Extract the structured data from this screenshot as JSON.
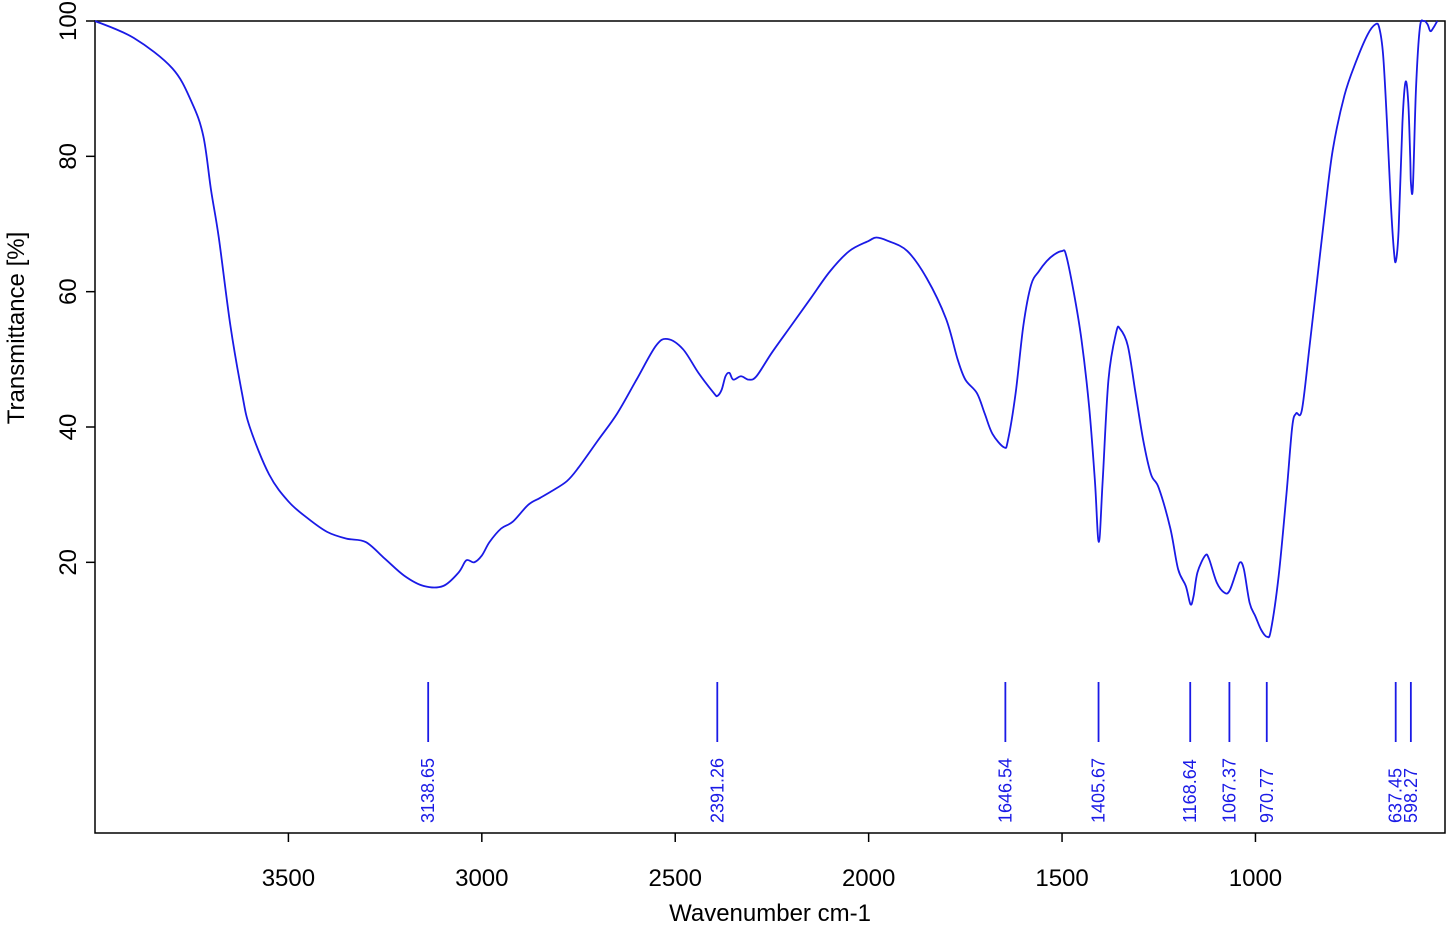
{
  "chart_data": {
    "type": "line",
    "title": "",
    "xlabel": "Wavenumber cm-1",
    "ylabel": "Transmittance [%]",
    "xlim": [
      4000,
      510
    ],
    "ylim": [
      -20,
      100
    ],
    "x_reversed": true,
    "grid": false,
    "x_ticks": [
      3500,
      3000,
      2500,
      2000,
      1500,
      1000
    ],
    "y_ticks": [
      20,
      40,
      60,
      80,
      100
    ],
    "line_color": "#1a1ae6",
    "series": [
      {
        "points": [
          [
            4000,
            100
          ],
          [
            3900,
            97.5
          ],
          [
            3800,
            93
          ],
          [
            3750,
            88
          ],
          [
            3720,
            83
          ],
          [
            3700,
            75
          ],
          [
            3680,
            68
          ],
          [
            3650,
            55
          ],
          [
            3620,
            45
          ],
          [
            3600,
            40
          ],
          [
            3550,
            33
          ],
          [
            3500,
            29
          ],
          [
            3450,
            26.5
          ],
          [
            3400,
            24.5
          ],
          [
            3350,
            23.5
          ],
          [
            3300,
            23
          ],
          [
            3250,
            20.5
          ],
          [
            3200,
            18
          ],
          [
            3150,
            16.5
          ],
          [
            3100,
            16.5
          ],
          [
            3060,
            18.5
          ],
          [
            3040,
            20.3
          ],
          [
            3020,
            20
          ],
          [
            3000,
            21
          ],
          [
            2980,
            23
          ],
          [
            2950,
            25
          ],
          [
            2920,
            26
          ],
          [
            2880,
            28.5
          ],
          [
            2850,
            29.5
          ],
          [
            2820,
            30.5
          ],
          [
            2780,
            32
          ],
          [
            2750,
            34
          ],
          [
            2700,
            38
          ],
          [
            2650,
            42
          ],
          [
            2600,
            47
          ],
          [
            2550,
            52
          ],
          [
            2520,
            53
          ],
          [
            2480,
            51.5
          ],
          [
            2440,
            48
          ],
          [
            2400,
            45
          ],
          [
            2391,
            44.6
          ],
          [
            2380,
            45.5
          ],
          [
            2370,
            47.5
          ],
          [
            2360,
            48
          ],
          [
            2350,
            47
          ],
          [
            2330,
            47.5
          ],
          [
            2310,
            47
          ],
          [
            2290,
            47.5
          ],
          [
            2250,
            51
          ],
          [
            2200,
            55
          ],
          [
            2150,
            59
          ],
          [
            2100,
            63
          ],
          [
            2050,
            66
          ],
          [
            2000,
            67.5
          ],
          [
            1980,
            68
          ],
          [
            1950,
            67.5
          ],
          [
            1900,
            66
          ],
          [
            1850,
            62
          ],
          [
            1800,
            56
          ],
          [
            1770,
            50
          ],
          [
            1750,
            47
          ],
          [
            1720,
            45
          ],
          [
            1700,
            42
          ],
          [
            1680,
            39
          ],
          [
            1650,
            37
          ],
          [
            1640,
            38
          ],
          [
            1620,
            45
          ],
          [
            1600,
            55
          ],
          [
            1580,
            61
          ],
          [
            1560,
            63
          ],
          [
            1540,
            64.5
          ],
          [
            1520,
            65.5
          ],
          [
            1500,
            66
          ],
          [
            1490,
            65.5
          ],
          [
            1470,
            60
          ],
          [
            1450,
            53
          ],
          [
            1430,
            43
          ],
          [
            1415,
            32
          ],
          [
            1405,
            23
          ],
          [
            1395,
            32
          ],
          [
            1380,
            47
          ],
          [
            1360,
            54
          ],
          [
            1350,
            54.5
          ],
          [
            1330,
            52
          ],
          [
            1310,
            45
          ],
          [
            1290,
            38
          ],
          [
            1270,
            33
          ],
          [
            1250,
            31
          ],
          [
            1220,
            25
          ],
          [
            1200,
            19
          ],
          [
            1180,
            16.5
          ],
          [
            1168,
            13.8
          ],
          [
            1160,
            15
          ],
          [
            1150,
            18.5
          ],
          [
            1130,
            21
          ],
          [
            1120,
            20.5
          ],
          [
            1100,
            17
          ],
          [
            1080,
            15.5
          ],
          [
            1067,
            15.8
          ],
          [
            1050,
            18.5
          ],
          [
            1040,
            20
          ],
          [
            1030,
            19
          ],
          [
            1015,
            14
          ],
          [
            1000,
            12
          ],
          [
            985,
            10
          ],
          [
            970,
            9
          ],
          [
            960,
            10
          ],
          [
            940,
            18
          ],
          [
            920,
            30
          ],
          [
            905,
            40
          ],
          [
            895,
            42
          ],
          [
            880,
            42.5
          ],
          [
            860,
            52
          ],
          [
            840,
            62
          ],
          [
            820,
            72
          ],
          [
            800,
            81
          ],
          [
            770,
            89
          ],
          [
            740,
            94
          ],
          [
            710,
            98
          ],
          [
            690,
            99.5
          ],
          [
            680,
            99
          ],
          [
            670,
            95
          ],
          [
            660,
            85
          ],
          [
            650,
            73
          ],
          [
            642,
            66
          ],
          [
            637,
            64.5
          ],
          [
            630,
            69
          ],
          [
            620,
            85
          ],
          [
            612,
            91
          ],
          [
            605,
            88
          ],
          [
            600,
            80
          ],
          [
            598,
            76
          ],
          [
            593,
            75.5
          ],
          [
            585,
            90
          ],
          [
            575,
            99
          ],
          [
            565,
            100
          ],
          [
            555,
            99.5
          ],
          [
            548,
            98.5
          ],
          [
            540,
            99
          ],
          [
            530,
            100
          ]
        ]
      }
    ],
    "peak_labels": [
      {
        "x": 3138.65,
        "label": "3138.65"
      },
      {
        "x": 2391.26,
        "label": "2391.26"
      },
      {
        "x": 1646.54,
        "label": "1646.54"
      },
      {
        "x": 1405.67,
        "label": "1405.67"
      },
      {
        "x": 1168.64,
        "label": "1168.64"
      },
      {
        "x": 1067.37,
        "label": "1067.37"
      },
      {
        "x": 970.77,
        "label": "970.77"
      },
      {
        "x": 637.45,
        "label": "637.45"
      },
      {
        "x": 598.27,
        "label": "598.27"
      }
    ]
  }
}
